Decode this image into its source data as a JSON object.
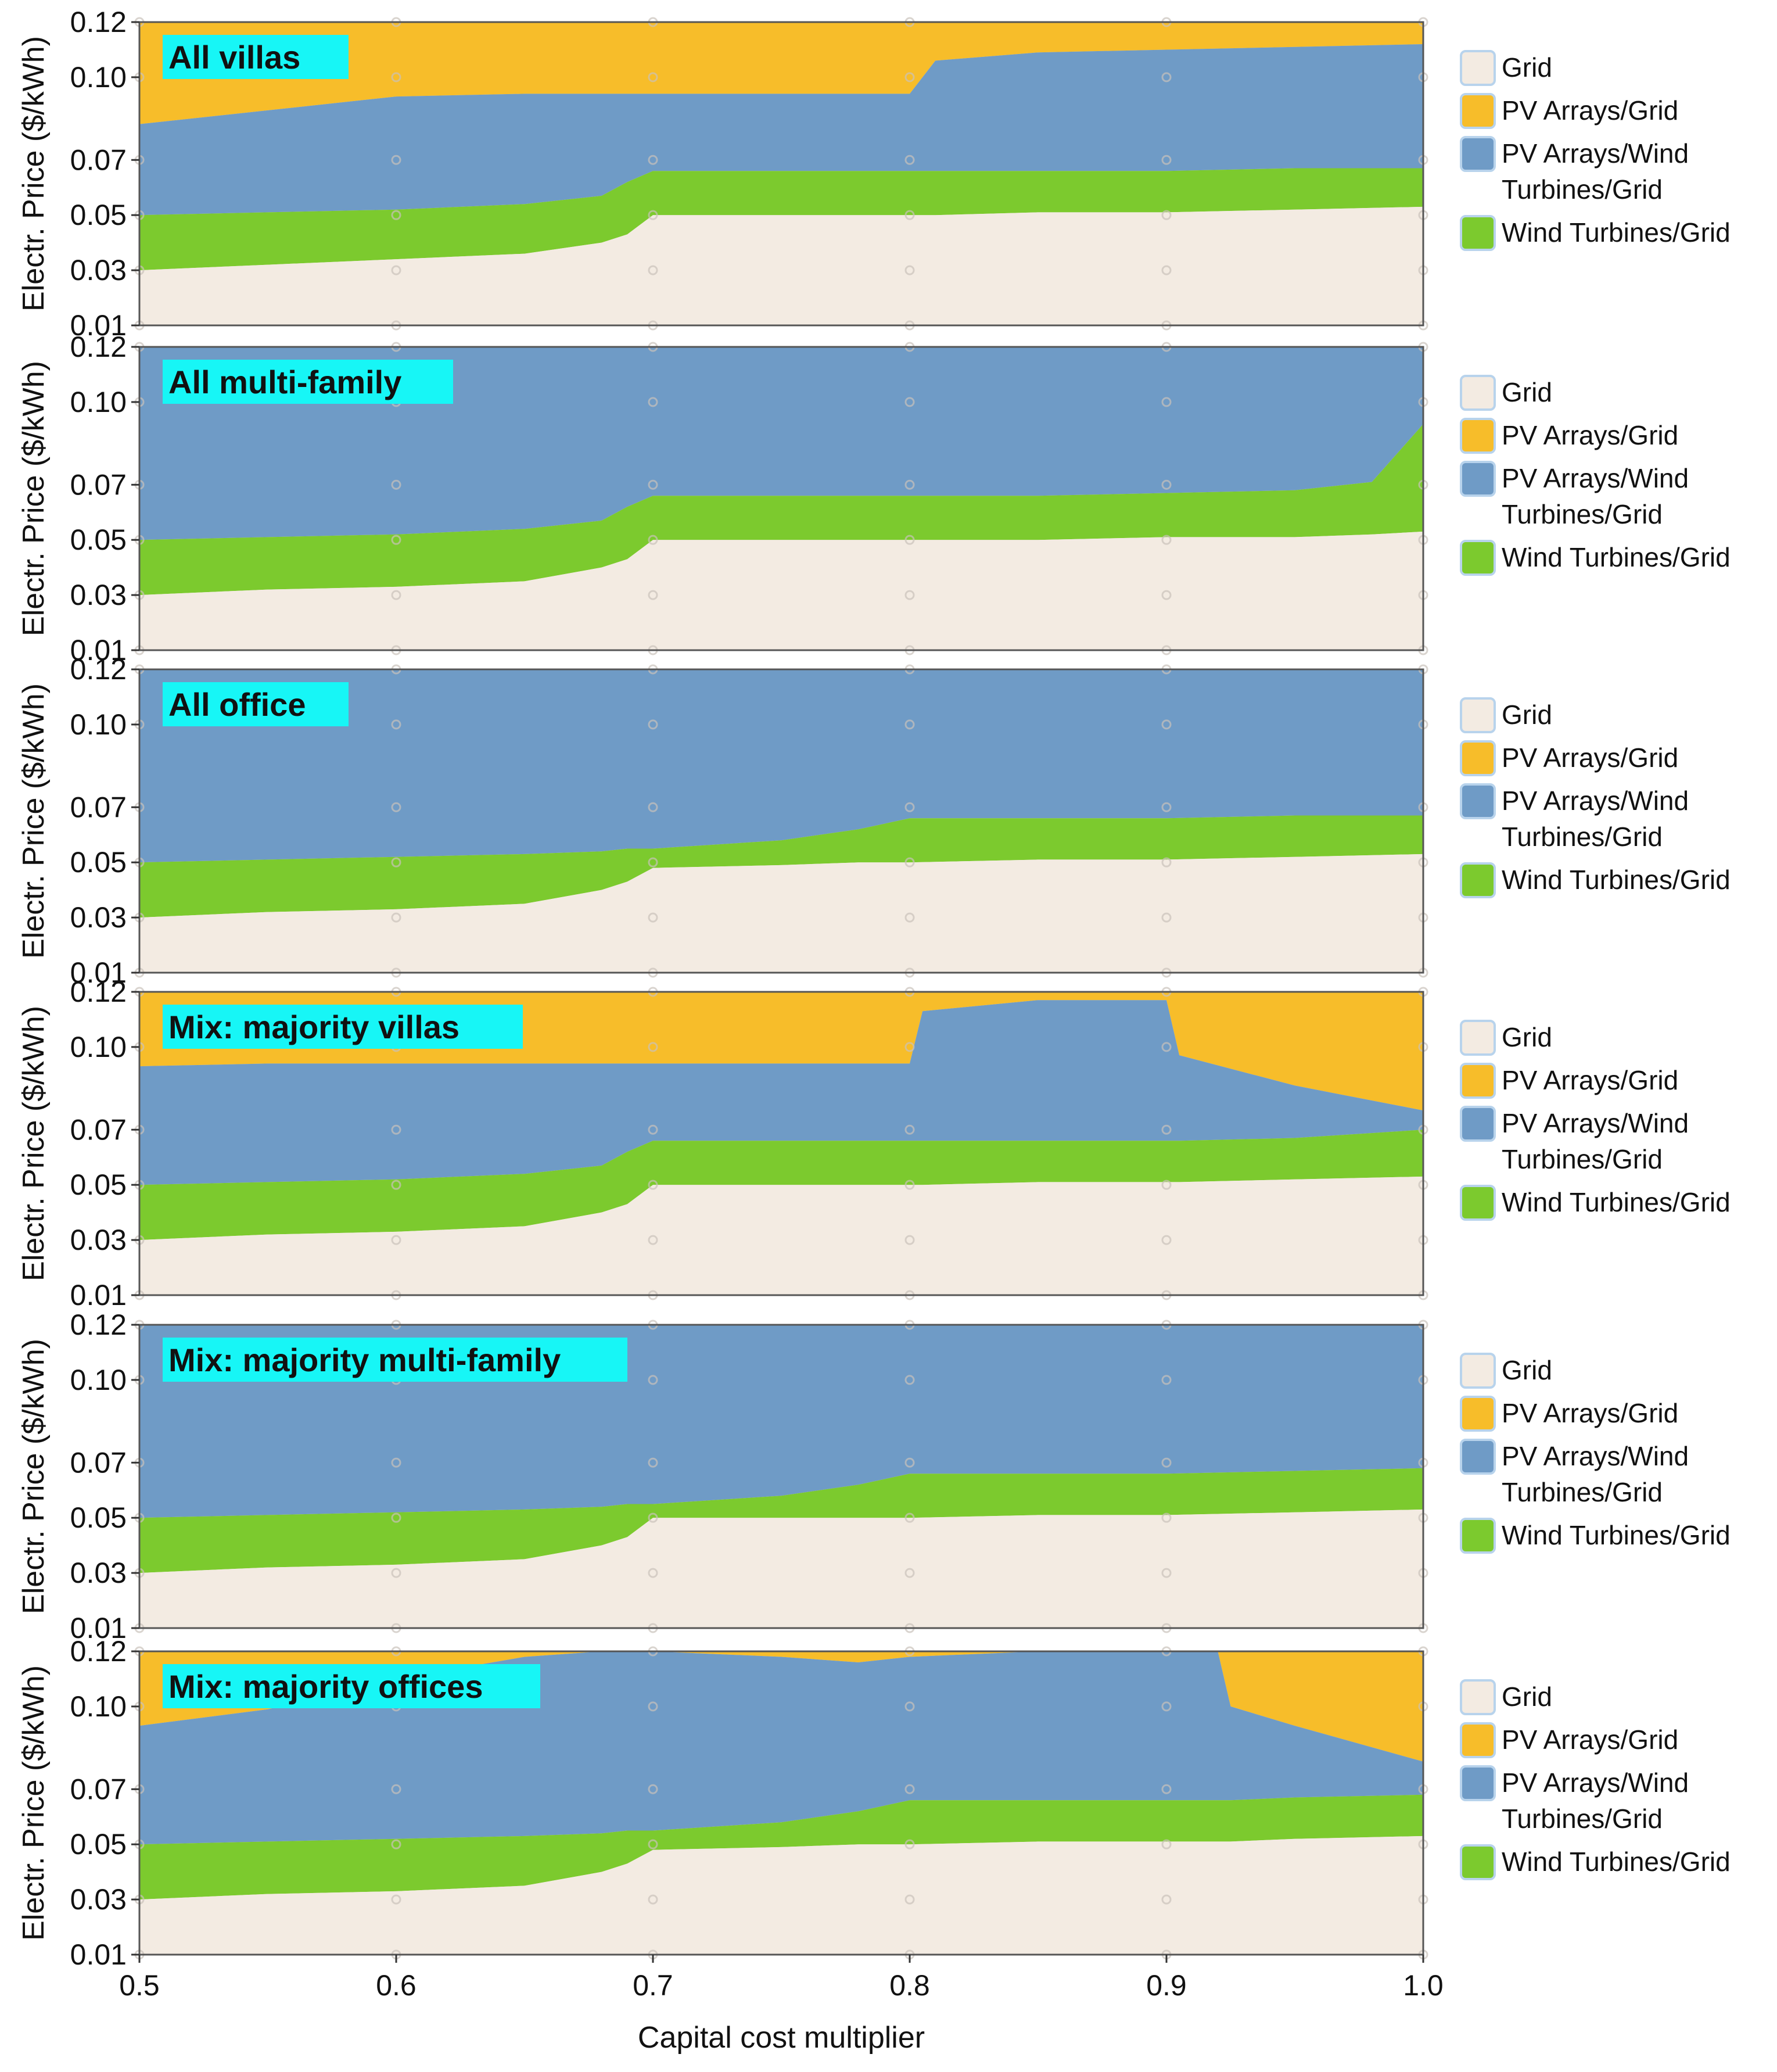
{
  "chart_data": {
    "type": "area",
    "xlabel": "Capital cost multiplier",
    "ylabel": "Electr. Price ($/kWh)",
    "xlim": [
      0.5,
      1.0
    ],
    "ylim": [
      0.01,
      0.12
    ],
    "x_ticks": [
      "0.5",
      "0.6",
      "0.7",
      "0.8",
      "0.9",
      "1.0"
    ],
    "y_ticks": [
      "0.01",
      "0.03",
      "0.05",
      "0.07",
      "0.10",
      "0.12"
    ],
    "legend": {
      "placement": "right",
      "items": [
        {
          "label": "Grid",
          "color": "#f3ebe2"
        },
        {
          "label": "PV Arrays/Grid",
          "color": "#f7bd2a"
        },
        {
          "label": "PV Arrays/Wind Turbines/Grid",
          "color": "#6f9bc6"
        },
        {
          "label": "Wind Turbines/Grid",
          "color": "#7cca2e"
        }
      ]
    },
    "panels": [
      {
        "title": "All villas",
        "x": [
          0.5,
          0.55,
          0.6,
          0.65,
          0.68,
          0.69,
          0.7,
          0.75,
          0.8,
          0.81,
          0.85,
          0.9,
          0.95,
          1.0
        ],
        "grid_upper": [
          0.03,
          0.032,
          0.034,
          0.036,
          0.04,
          0.043,
          0.05,
          0.05,
          0.05,
          0.05,
          0.051,
          0.051,
          0.052,
          0.053
        ],
        "wind_upper": [
          0.05,
          0.051,
          0.052,
          0.054,
          0.057,
          0.062,
          0.066,
          0.066,
          0.066,
          0.066,
          0.066,
          0.066,
          0.067,
          0.067
        ],
        "pvwind_upper": [
          0.083,
          0.088,
          0.093,
          0.094,
          0.094,
          0.094,
          0.094,
          0.094,
          0.094,
          0.106,
          0.109,
          0.11,
          0.111,
          0.112
        ],
        "pv_upper": [
          0.12,
          0.12,
          0.12,
          0.12,
          0.12,
          0.12,
          0.12,
          0.12,
          0.12,
          0.12,
          0.12,
          0.12,
          0.12,
          0.12
        ]
      },
      {
        "title": "All multi-family",
        "x": [
          0.5,
          0.55,
          0.6,
          0.65,
          0.68,
          0.69,
          0.7,
          0.75,
          0.8,
          0.85,
          0.9,
          0.95,
          0.98,
          1.0
        ],
        "grid_upper": [
          0.03,
          0.032,
          0.033,
          0.035,
          0.04,
          0.043,
          0.05,
          0.05,
          0.05,
          0.05,
          0.051,
          0.051,
          0.052,
          0.053
        ],
        "wind_upper": [
          0.05,
          0.051,
          0.052,
          0.054,
          0.057,
          0.062,
          0.066,
          0.066,
          0.066,
          0.066,
          0.067,
          0.068,
          0.071,
          0.092
        ],
        "pvwind_upper": [
          0.12,
          0.12,
          0.12,
          0.12,
          0.12,
          0.12,
          0.12,
          0.12,
          0.12,
          0.12,
          0.12,
          0.12,
          0.12,
          0.12
        ],
        "pv_upper": [
          0.12,
          0.12,
          0.12,
          0.12,
          0.12,
          0.12,
          0.12,
          0.12,
          0.12,
          0.12,
          0.12,
          0.12,
          0.12,
          0.12
        ]
      },
      {
        "title": "All office",
        "x": [
          0.5,
          0.55,
          0.6,
          0.65,
          0.68,
          0.69,
          0.7,
          0.75,
          0.78,
          0.8,
          0.85,
          0.9,
          0.95,
          1.0
        ],
        "grid_upper": [
          0.03,
          0.032,
          0.033,
          0.035,
          0.04,
          0.043,
          0.048,
          0.049,
          0.05,
          0.05,
          0.051,
          0.051,
          0.052,
          0.053
        ],
        "wind_upper": [
          0.05,
          0.051,
          0.052,
          0.053,
          0.054,
          0.055,
          0.055,
          0.058,
          0.062,
          0.066,
          0.066,
          0.066,
          0.067,
          0.067
        ],
        "pvwind_upper": [
          0.12,
          0.12,
          0.12,
          0.12,
          0.12,
          0.12,
          0.12,
          0.12,
          0.12,
          0.12,
          0.12,
          0.12,
          0.12,
          0.12
        ],
        "pv_upper": [
          0.12,
          0.12,
          0.12,
          0.12,
          0.12,
          0.12,
          0.12,
          0.12,
          0.12,
          0.12,
          0.12,
          0.12,
          0.12,
          0.12
        ]
      },
      {
        "title": "Mix: majority villas",
        "x": [
          0.5,
          0.55,
          0.6,
          0.65,
          0.68,
          0.69,
          0.7,
          0.75,
          0.8,
          0.805,
          0.85,
          0.9,
          0.905,
          0.95,
          1.0
        ],
        "grid_upper": [
          0.03,
          0.032,
          0.033,
          0.035,
          0.04,
          0.043,
          0.05,
          0.05,
          0.05,
          0.05,
          0.051,
          0.051,
          0.051,
          0.052,
          0.053
        ],
        "wind_upper": [
          0.05,
          0.051,
          0.052,
          0.054,
          0.057,
          0.062,
          0.066,
          0.066,
          0.066,
          0.066,
          0.066,
          0.066,
          0.066,
          0.067,
          0.07
        ],
        "pvwind_upper": [
          0.093,
          0.094,
          0.094,
          0.094,
          0.094,
          0.094,
          0.094,
          0.094,
          0.094,
          0.113,
          0.117,
          0.117,
          0.097,
          0.086,
          0.077
        ],
        "pv_upper": [
          0.12,
          0.12,
          0.12,
          0.12,
          0.12,
          0.12,
          0.12,
          0.12,
          0.12,
          0.12,
          0.12,
          0.12,
          0.12,
          0.12,
          0.12
        ]
      },
      {
        "title": "Mix: majority multi-family",
        "x": [
          0.5,
          0.55,
          0.6,
          0.65,
          0.68,
          0.69,
          0.7,
          0.75,
          0.78,
          0.8,
          0.85,
          0.9,
          0.95,
          1.0
        ],
        "grid_upper": [
          0.03,
          0.032,
          0.033,
          0.035,
          0.04,
          0.043,
          0.05,
          0.05,
          0.05,
          0.05,
          0.051,
          0.051,
          0.052,
          0.053
        ],
        "wind_upper": [
          0.05,
          0.051,
          0.052,
          0.053,
          0.054,
          0.055,
          0.055,
          0.058,
          0.062,
          0.066,
          0.066,
          0.066,
          0.067,
          0.068
        ],
        "pvwind_upper": [
          0.12,
          0.12,
          0.12,
          0.12,
          0.12,
          0.12,
          0.12,
          0.12,
          0.12,
          0.12,
          0.12,
          0.12,
          0.12,
          0.12
        ],
        "pv_upper": [
          0.12,
          0.12,
          0.12,
          0.12,
          0.12,
          0.12,
          0.12,
          0.12,
          0.12,
          0.12,
          0.12,
          0.12,
          0.12,
          0.12
        ]
      },
      {
        "title": "Mix: majority offices",
        "x": [
          0.5,
          0.55,
          0.6,
          0.65,
          0.68,
          0.69,
          0.7,
          0.75,
          0.78,
          0.8,
          0.85,
          0.9,
          0.92,
          0.925,
          0.95,
          1.0
        ],
        "grid_upper": [
          0.03,
          0.032,
          0.033,
          0.035,
          0.04,
          0.043,
          0.048,
          0.049,
          0.05,
          0.05,
          0.051,
          0.051,
          0.051,
          0.051,
          0.052,
          0.053
        ],
        "wind_upper": [
          0.05,
          0.051,
          0.052,
          0.053,
          0.054,
          0.055,
          0.055,
          0.058,
          0.062,
          0.066,
          0.066,
          0.066,
          0.066,
          0.066,
          0.067,
          0.068
        ],
        "pvwind_upper": [
          0.093,
          0.099,
          0.11,
          0.118,
          0.12,
          0.12,
          0.12,
          0.118,
          0.116,
          0.118,
          0.12,
          0.12,
          0.12,
          0.1,
          0.093,
          0.08
        ],
        "pv_upper": [
          0.12,
          0.12,
          0.12,
          0.12,
          0.12,
          0.12,
          0.12,
          0.12,
          0.12,
          0.12,
          0.12,
          0.12,
          0.12,
          0.12,
          0.12,
          0.12
        ]
      }
    ]
  }
}
